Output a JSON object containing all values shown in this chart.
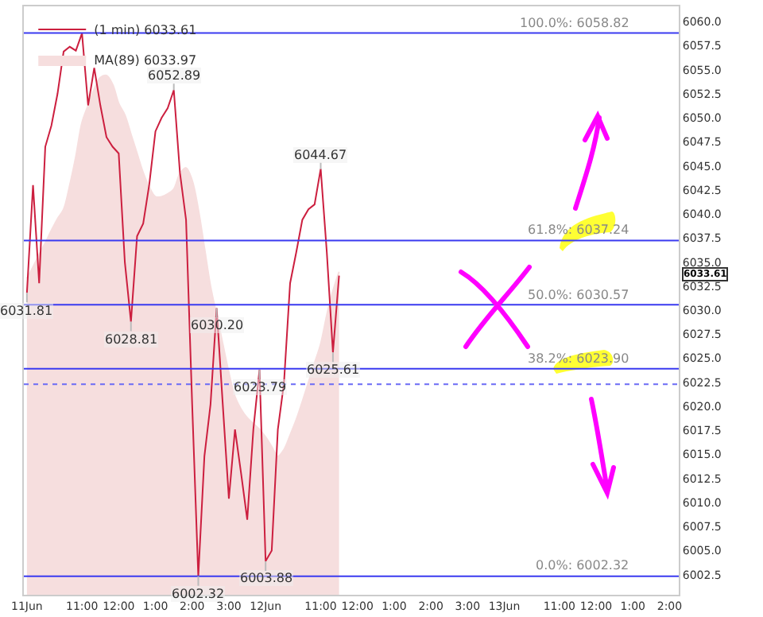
{
  "chart_data": {
    "type": "line",
    "categories": [
      "11Jun",
      null,
      null,
      null,
      null,
      null,
      null,
      null,
      null,
      "11:00",
      null,
      null,
      null,
      null,
      null,
      "12:00",
      null,
      null,
      null,
      null,
      null,
      "1:00",
      null,
      null,
      null,
      null,
      null,
      "2:00",
      null,
      null,
      null,
      null,
      null,
      "3:00",
      null,
      null,
      null,
      null,
      null,
      "12Jun",
      null,
      null,
      null,
      null,
      null,
      null,
      null,
      null,
      "11:00",
      null,
      null,
      null,
      null,
      null,
      "12:00",
      null,
      null,
      null,
      null,
      null,
      "1:00",
      null,
      null,
      null,
      null,
      null,
      "2:00",
      null,
      null,
      null,
      null,
      null,
      "3:00",
      null,
      null,
      null,
      null,
      null,
      "13Jun",
      null,
      null,
      null,
      null,
      null,
      null,
      null,
      null,
      "11:00",
      null,
      null,
      null,
      null,
      null,
      "12:00",
      null,
      null,
      null,
      null,
      null,
      "1:00",
      null,
      null,
      null,
      null,
      null,
      "2:00",
      null
    ],
    "series": [
      {
        "name": "MA(89) 6033.97",
        "type": "area",
        "color": "#f6dede",
        "values": [
          6033.3,
          6034.5,
          6035.8,
          6037,
          6038.3,
          6039.5,
          6040.5,
          6043,
          6046,
          6049.5,
          6051.3,
          6053,
          6054.2,
          6054.4,
          6053.5,
          6051.5,
          6050.3,
          6048.3,
          6046.3,
          6044.3,
          6042.8,
          6041.8,
          6041.8,
          6042.1,
          6042.6,
          6044.2,
          6044.8,
          6043.5,
          6040.5,
          6036.5,
          6032.5,
          6029.5,
          6026.5,
          6023.5,
          6021,
          6019.7,
          6018.8,
          6018.2,
          6017.6,
          6016.8,
          6015.8,
          6014.8,
          6015.5,
          6017,
          6018.6,
          6020.5,
          6022.5,
          6024.5,
          6026.5,
          6029.5,
          6032,
          6034,
          null,
          null,
          null,
          null,
          null,
          null,
          null,
          null,
          null,
          null,
          null,
          null,
          null,
          null,
          null,
          null,
          null,
          null,
          null,
          null,
          null,
          null,
          null,
          null,
          null,
          null,
          null,
          null,
          null,
          null,
          null,
          null,
          null,
          null,
          null,
          null,
          null,
          null,
          null,
          null,
          null,
          null,
          null,
          null,
          null,
          null,
          null,
          null,
          null,
          null,
          null,
          null,
          null,
          null,
          null
        ]
      },
      {
        "name": "(1 min) 6033.61",
        "color": "#cc1f3f",
        "values": [
          6031.8,
          6043,
          6032.8,
          6047,
          6049.2,
          6052.5,
          6056.9,
          6057.4,
          6057,
          6058.8,
          6051.3,
          6055.2,
          6051.3,
          6048,
          6047,
          6046.3,
          6035,
          6028.8,
          6037.7,
          6039,
          6043.1,
          6048.6,
          6050,
          6051,
          6052.9,
          6044.3,
          6039.4,
          6020.2,
          6002.3,
          6014.8,
          6020.2,
          6030.2,
          6020.2,
          6010.4,
          6017.6,
          6013,
          6008.2,
          6017.6,
          6023.8,
          6003.9,
          6005,
          6017.6,
          6022.4,
          6032.8,
          6036,
          6039.4,
          6040.5,
          6041,
          6044.7,
          6036,
          6025.6,
          6033.6,
          null,
          null,
          null,
          null,
          null,
          null,
          null,
          null,
          null,
          null,
          null,
          null,
          null,
          null,
          null,
          null,
          null,
          null,
          null,
          null,
          null,
          null,
          null,
          null,
          null,
          null,
          null,
          null,
          null,
          null,
          null,
          null,
          null,
          null,
          null,
          null,
          null,
          null,
          null,
          null,
          null,
          null,
          null,
          null,
          null,
          null,
          null,
          null,
          null,
          null,
          null,
          null,
          null,
          null,
          null
        ]
      }
    ],
    "ylim": [
      6000.4,
      6061.6
    ],
    "yticks": [
      {
        "value": 6002.5,
        "label": "6002.5"
      },
      {
        "value": 6005,
        "label": "6005.0"
      },
      {
        "value": 6007.5,
        "label": "6007.5"
      },
      {
        "value": 6010,
        "label": "6010.0"
      },
      {
        "value": 6012.5,
        "label": "6012.5"
      },
      {
        "value": 6015,
        "label": "6015.0"
      },
      {
        "value": 6017.5,
        "label": "6017.5"
      },
      {
        "value": 6020,
        "label": "6020.0"
      },
      {
        "value": 6022.5,
        "label": "6022.5"
      },
      {
        "value": 6025,
        "label": "6025.0"
      },
      {
        "value": 6027.5,
        "label": "6027.5"
      },
      {
        "value": 6030,
        "label": "6030.0"
      },
      {
        "value": 6032.5,
        "label": "6032.5"
      },
      {
        "value": 6035,
        "label": "6035.0"
      },
      {
        "value": 6037.5,
        "label": "6037.5"
      },
      {
        "value": 6040,
        "label": "6040.0"
      },
      {
        "value": 6042.5,
        "label": "6042.5"
      },
      {
        "value": 6045,
        "label": "6045.0"
      },
      {
        "value": 6047.5,
        "label": "6047.5"
      },
      {
        "value": 6050,
        "label": "6050.0"
      },
      {
        "value": 6052.5,
        "label": "6052.5"
      },
      {
        "value": 6055,
        "label": "6055.0"
      },
      {
        "value": 6057.5,
        "label": "6057.5"
      },
      {
        "value": 6060,
        "label": "6060.0"
      }
    ],
    "ref_lines": [
      {
        "axis": "y",
        "value": 6058.82,
        "label": "100.0%: 6058.82",
        "color": "#3a3af0",
        "line_style": "solid"
      },
      {
        "axis": "y",
        "value": 6037.24,
        "label": "61.8%: 6037.24",
        "color": "#3a3af0",
        "line_style": "solid"
      },
      {
        "axis": "y",
        "value": 6030.57,
        "label": "50.0%: 6030.57",
        "color": "#3a3af0",
        "line_style": "solid"
      },
      {
        "axis": "y",
        "value": 6023.9,
        "label": "38.2%: 6023.90",
        "color": "#3a3af0",
        "line_style": "solid"
      },
      {
        "axis": "y",
        "value": 6002.32,
        "label": "0.0%: 6002.32",
        "color": "#3a3af0",
        "line_style": "solid"
      },
      {
        "axis": "y",
        "value": 6022.3,
        "color": "#6b6bf5",
        "line_style": "dotted"
      }
    ],
    "annotations": [
      {
        "text": "6031.81",
        "y": 6031.81
      },
      {
        "text": "6052.89",
        "y": 6052.89
      },
      {
        "text": "6028.81",
        "y": 6028.81
      },
      {
        "text": "6030.20",
        "y": 6030.2
      },
      {
        "text": "6002.32",
        "y": 6002.32
      },
      {
        "text": "6023.79",
        "y": 6023.79
      },
      {
        "text": "6003.88",
        "y": 6003.88
      },
      {
        "text": "6044.67",
        "y": 6044.67
      },
      {
        "text": "6025.61",
        "y": 6025.61
      },
      "6033.61"
    ],
    "legend": "top left",
    "grid": false
  }
}
